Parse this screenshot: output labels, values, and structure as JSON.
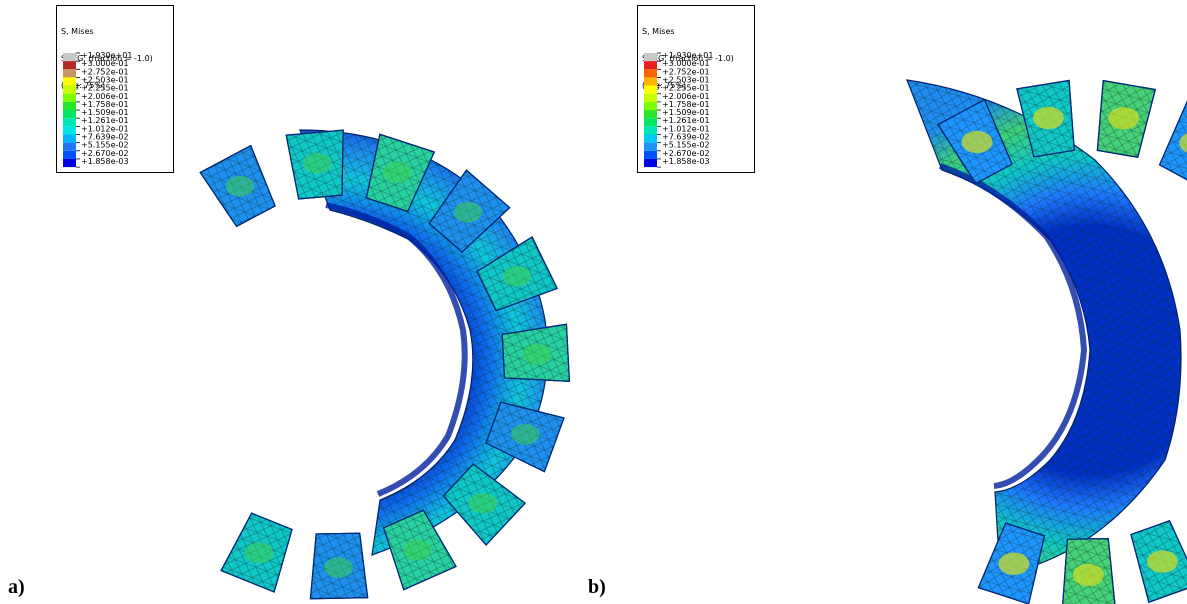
{
  "legend_header": {
    "line1": "S, Mises",
    "line2": "SNEG, (fraction = -1.0)",
    "line3": "(Avg: 75%)"
  },
  "legend_values": [
    "+1.930e+01",
    "+3.000e-01",
    "+2.752e-01",
    "+2.503e-01",
    "+2.255e-01",
    "+2.006e-01",
    "+1.758e-01",
    "+1.509e-01",
    "+1.261e-01",
    "+1.012e-01",
    "+7.639e-02",
    "+5.155e-02",
    "+2.670e-02",
    "+1.858e-03"
  ],
  "colors": {
    "a": [
      "#c8c8c8",
      "#b42828",
      "#c89664",
      "#ffff00",
      "#c8ff00",
      "#78ff00",
      "#28e628",
      "#00e664",
      "#00e6b4",
      "#00e6e6",
      "#00b4ff",
      "#1e78ff",
      "#0050ff",
      "#0000e6"
    ],
    "b": [
      "#c8c8c8",
      "#e61e1e",
      "#ff6400",
      "#ffb400",
      "#ffff00",
      "#c8ff00",
      "#78ff00",
      "#28e628",
      "#00e664",
      "#00e6b4",
      "#00c8f0",
      "#1e96ff",
      "#0050ff",
      "#0000e6"
    ]
  },
  "panels": [
    {
      "id": "a",
      "label": "a)"
    },
    {
      "id": "b",
      "label": "b)"
    }
  ]
}
